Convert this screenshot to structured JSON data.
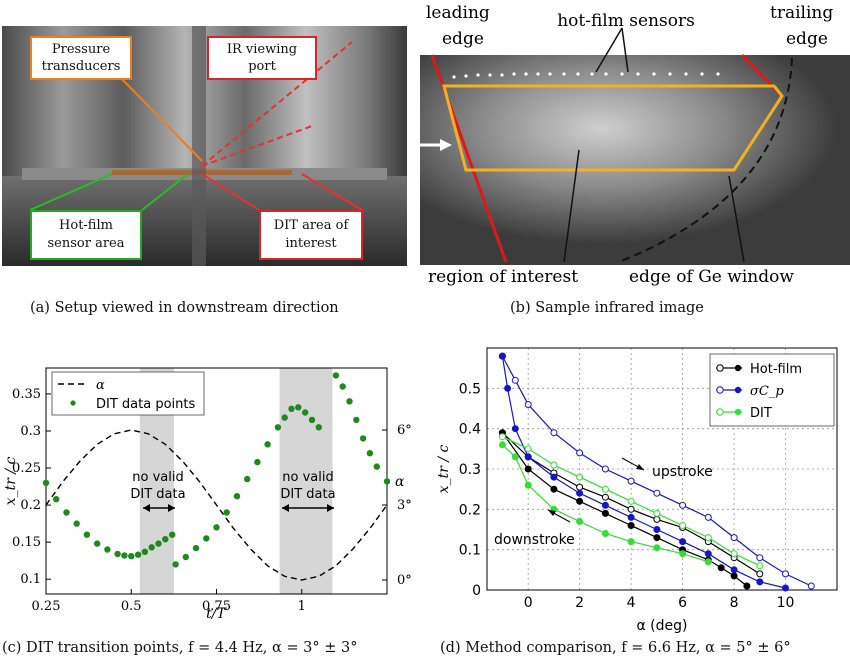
{
  "panel_a": {
    "caption": "(a) Setup viewed in downstream direction",
    "labels": {
      "pressure": [
        "Pressure",
        "transducers"
      ],
      "ir_port": [
        "IR viewing",
        "port"
      ],
      "hotfilm": [
        "Hot-film",
        "sensor area"
      ],
      "dit": [
        "DIT area of",
        "interest"
      ]
    },
    "colors": {
      "pressure": "#ee7d22",
      "ir_port": "#d9242b",
      "hotfilm": "#22aa22",
      "dit": "#d9242b"
    }
  },
  "panel_b": {
    "caption": "(b) Sample infrared image",
    "labels": {
      "leading": [
        "leading",
        "edge"
      ],
      "hotfilm": "hot-film sensors",
      "trailing": [
        "trailing",
        "edge"
      ],
      "roi": "region of interest",
      "ge_window": "edge of Ge window"
    }
  },
  "chart_data": [
    {
      "type": "scatter",
      "caption": "(c) DIT transition points, f = 4.4 Hz, α = 3° ± 3°",
      "xlabel": "t/T",
      "ylabel": "x_tr / c",
      "xlim": [
        0.25,
        1.25
      ],
      "ylim": [
        0.08,
        0.385
      ],
      "x_ticks": [
        "0.25",
        "0.5",
        "0.75",
        "1"
      ],
      "y_ticks": [
        "0.1",
        "0.15",
        "0.2",
        "0.25",
        "0.3",
        "0.35"
      ],
      "right_axis_label": "α",
      "right_ticks": [
        "0°",
        "3°",
        "6°"
      ],
      "legend": [
        "α",
        "DIT data points"
      ],
      "annotations": [
        "no valid",
        "DIT data"
      ],
      "shaded_regions": [
        [
          0.525,
          0.625
        ],
        [
          0.935,
          1.09
        ]
      ],
      "series": [
        {
          "name": "DIT data points",
          "color": "#1e8a1e",
          "x": [
            0.25,
            0.28,
            0.31,
            0.34,
            0.37,
            0.4,
            0.43,
            0.46,
            0.48,
            0.5,
            0.52,
            0.54,
            0.56,
            0.58,
            0.6,
            0.62,
            0.63,
            0.66,
            0.69,
            0.72,
            0.75,
            0.78,
            0.81,
            0.84,
            0.87,
            0.9,
            0.93,
            0.95,
            0.97,
            0.99,
            1.01,
            1.03,
            1.05,
            1.1,
            1.12,
            1.14,
            1.16,
            1.18,
            1.2,
            1.22,
            1.25
          ],
          "y": [
            0.23,
            0.208,
            0.19,
            0.175,
            0.16,
            0.148,
            0.14,
            0.134,
            0.132,
            0.131,
            0.133,
            0.137,
            0.143,
            0.148,
            0.154,
            0.16,
            0.12,
            0.13,
            0.142,
            0.155,
            0.17,
            0.19,
            0.212,
            0.235,
            0.258,
            0.282,
            0.305,
            0.318,
            0.33,
            0.332,
            0.325,
            0.315,
            0.305,
            0.375,
            0.36,
            0.34,
            0.315,
            0.29,
            0.27,
            0.252,
            0.232
          ]
        },
        {
          "name": "α",
          "color": "#000000",
          "x": [
            0.25,
            0.3,
            0.35,
            0.4,
            0.45,
            0.5,
            0.55,
            0.6,
            0.65,
            0.7,
            0.75,
            0.8,
            0.85,
            0.9,
            0.95,
            1.0,
            1.05,
            1.1,
            1.15,
            1.2,
            1.25
          ],
          "y": [
            3.0,
            3.94,
            4.76,
            5.43,
            5.85,
            6.0,
            5.85,
            5.43,
            4.76,
            3.94,
            3.0,
            2.06,
            1.24,
            0.57,
            0.15,
            0.0,
            0.15,
            0.57,
            1.24,
            2.06,
            3.0
          ]
        }
      ]
    },
    {
      "type": "line",
      "caption": "(d) Method comparison, f = 6.6 Hz, α = 5° ± 6°",
      "xlabel": "α (deg)",
      "ylabel": "x_tr / c",
      "xlim": [
        -1.6,
        12
      ],
      "ylim": [
        0,
        0.6
      ],
      "x_ticks": [
        "0",
        "2",
        "4",
        "6",
        "8",
        "10"
      ],
      "y_ticks": [
        "0",
        "0.1",
        "0.2",
        "0.3",
        "0.4",
        "0.5"
      ],
      "annotations": [
        "upstroke",
        "downstroke"
      ],
      "legend": [
        "Hot-film",
        "σC_p",
        "DIT"
      ],
      "series": [
        {
          "name": "Hot-film",
          "color": "#000000",
          "style": "upstroke",
          "x": [
            -1.0,
            0.0,
            1.0,
            2.0,
            3.0,
            4.0,
            5.0,
            6.0,
            7.0,
            8.0,
            9.0
          ],
          "y": [
            0.39,
            0.33,
            0.29,
            0.255,
            0.23,
            0.2,
            0.175,
            0.155,
            0.12,
            0.08,
            0.04
          ]
        },
        {
          "name": "Hot-film",
          "color": "#000000",
          "style": "downstroke",
          "x": [
            -1.0,
            0.0,
            1.0,
            2.0,
            3.0,
            4.0,
            5.0,
            6.0,
            7.0,
            7.5,
            8.0,
            8.5
          ],
          "y": [
            0.39,
            0.3,
            0.25,
            0.22,
            0.19,
            0.16,
            0.13,
            0.1,
            0.075,
            0.055,
            0.035,
            0.01
          ]
        },
        {
          "name": "σC_p",
          "color": "#1616c8",
          "style": "upstroke",
          "x": [
            -1.0,
            -0.5,
            0.0,
            1.0,
            2.0,
            3.0,
            4.0,
            5.0,
            6.0,
            7.0,
            8.0,
            9.0,
            10.0,
            11.0
          ],
          "y": [
            0.58,
            0.52,
            0.46,
            0.39,
            0.34,
            0.3,
            0.27,
            0.24,
            0.21,
            0.18,
            0.13,
            0.08,
            0.04,
            0.01
          ]
        },
        {
          "name": "σC_p",
          "color": "#1616c8",
          "style": "downstroke",
          "x": [
            -1.0,
            -0.8,
            -0.5,
            0.0,
            1.0,
            2.0,
            3.0,
            4.0,
            5.0,
            6.0,
            7.0,
            8.0,
            9.0,
            10.0
          ],
          "y": [
            0.58,
            0.5,
            0.4,
            0.33,
            0.28,
            0.24,
            0.21,
            0.18,
            0.15,
            0.12,
            0.09,
            0.05,
            0.02,
            0.005
          ]
        },
        {
          "name": "DIT",
          "color": "#33dd33",
          "style": "upstroke",
          "x": [
            -1.0,
            0.0,
            1.0,
            2.0,
            3.0,
            4.0,
            5.0,
            6.0,
            7.0,
            8.0,
            9.0
          ],
          "y": [
            0.38,
            0.35,
            0.31,
            0.28,
            0.25,
            0.22,
            0.19,
            0.16,
            0.13,
            0.09,
            0.06
          ]
        },
        {
          "name": "DIT",
          "color": "#33dd33",
          "style": "downstroke",
          "x": [
            -1.0,
            -0.5,
            0.0,
            1.0,
            2.0,
            3.0,
            4.0,
            5.0,
            6.0,
            7.0
          ],
          "y": [
            0.36,
            0.33,
            0.26,
            0.2,
            0.17,
            0.14,
            0.12,
            0.105,
            0.09,
            0.07
          ]
        }
      ]
    }
  ]
}
